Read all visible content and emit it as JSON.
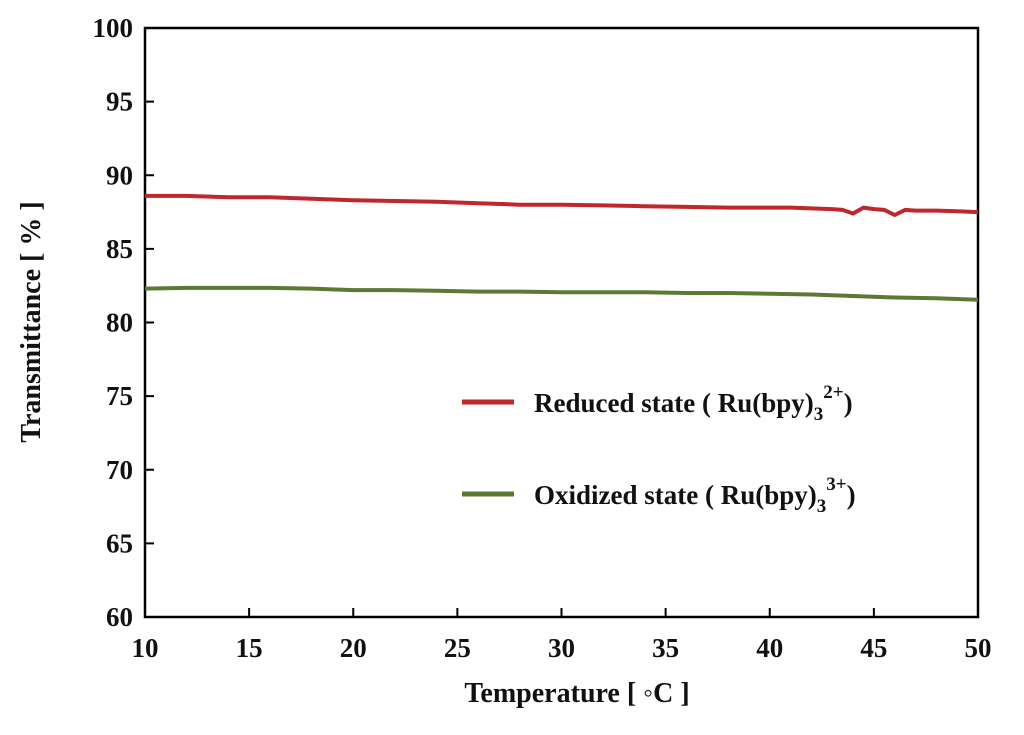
{
  "chart_data": {
    "type": "line",
    "xlabel": "Temperature [ ◦C ]",
    "ylabel": "Transmittance [ % ]",
    "xlim": [
      10,
      50
    ],
    "ylim": [
      60,
      100
    ],
    "x_ticks": [
      "10",
      "15",
      "20",
      "25",
      "30",
      "35",
      "40",
      "45",
      "50"
    ],
    "y_ticks": [
      "60",
      "65",
      "70",
      "75",
      "80",
      "85",
      "90",
      "95",
      "100"
    ],
    "grid": false,
    "legend_position": "center-right",
    "series": [
      {
        "name": "Reduced state ( Ru(bpy)32+)",
        "legend_main": "Reduced state ( Ru(bpy)",
        "legend_sub": "3",
        "legend_sup": "2+",
        "legend_close": ")",
        "color": "#c0272d",
        "x": [
          10,
          12,
          14,
          16,
          18,
          20,
          22,
          24,
          26,
          28,
          30,
          32,
          34,
          36,
          38,
          40,
          41,
          42,
          43,
          43.5,
          44,
          44.5,
          45,
          45.5,
          46,
          46.5,
          47,
          48,
          49,
          50
        ],
        "y": [
          88.6,
          88.6,
          88.5,
          88.5,
          88.4,
          88.3,
          88.25,
          88.2,
          88.1,
          88.0,
          88.0,
          87.95,
          87.9,
          87.85,
          87.8,
          87.8,
          87.8,
          87.75,
          87.7,
          87.65,
          87.4,
          87.8,
          87.7,
          87.65,
          87.3,
          87.65,
          87.6,
          87.6,
          87.55,
          87.5
        ]
      },
      {
        "name": "Oxidized state ( Ru(bpy)33+)",
        "legend_main": "Oxidized state ( Ru(bpy)",
        "legend_sub": "3",
        "legend_sup": "3+",
        "legend_close": ")",
        "color": "#5a7a32",
        "x": [
          10,
          12,
          14,
          16,
          18,
          20,
          22,
          24,
          26,
          28,
          30,
          32,
          34,
          36,
          38,
          40,
          42,
          44,
          46,
          48,
          50
        ],
        "y": [
          82.3,
          82.35,
          82.35,
          82.35,
          82.3,
          82.2,
          82.2,
          82.15,
          82.1,
          82.1,
          82.05,
          82.05,
          82.05,
          82.0,
          82.0,
          81.95,
          81.9,
          81.8,
          81.7,
          81.65,
          81.55
        ]
      }
    ]
  }
}
